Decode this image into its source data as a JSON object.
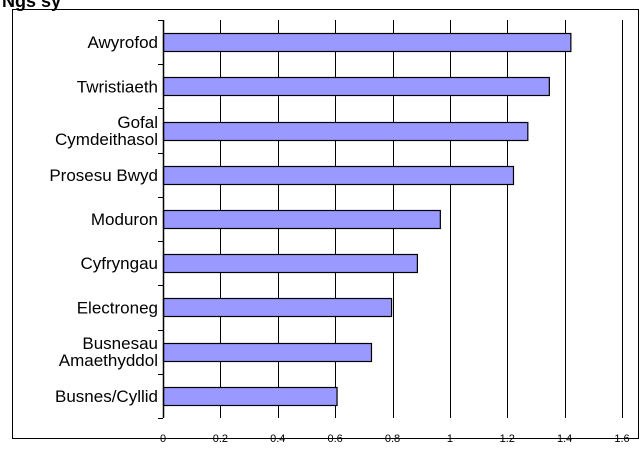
{
  "chart_data": {
    "type": "bar",
    "orientation": "horizontal",
    "title_fragment": "Ngs sy",
    "categories": [
      [
        "Awyrofod"
      ],
      [
        "Twristiaeth"
      ],
      [
        "Gofal",
        "Cymdeithasol"
      ],
      [
        "Prosesu Bwyd"
      ],
      [
        "Moduron"
      ],
      [
        "Cyfryngau"
      ],
      [
        "Electroneg"
      ],
      [
        "Busnesau",
        "Amaethyddol"
      ],
      [
        "Busnes/Cyllid"
      ]
    ],
    "values": [
      1.42,
      1.345,
      1.27,
      1.22,
      0.965,
      0.885,
      0.795,
      0.725,
      0.605
    ],
    "xlim": [
      0,
      1.6
    ],
    "xticks": [
      "0",
      "0.2",
      "0.4",
      "0.6",
      "0.8",
      "1",
      "1.2",
      "1.4",
      "1.6"
    ],
    "grid": true,
    "bar_color": "#9999ff",
    "bar_edge_color": "#000000",
    "xlabel": "",
    "ylabel": ""
  }
}
